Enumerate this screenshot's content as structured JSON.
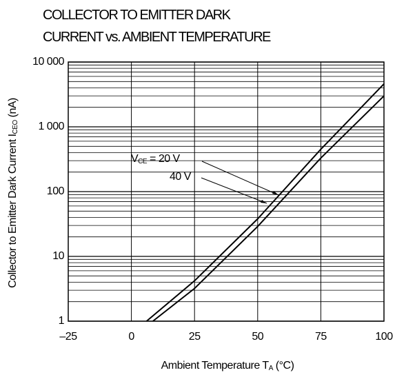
{
  "chart_data": {
    "type": "line",
    "title": [
      "COLLECTOR TO EMITTER DARK",
      "CURRENT vs. AMBIENT TEMPERATURE"
    ],
    "xlabel": {
      "text": "Ambient Temperature  T",
      "subscript": "A",
      "unit": " (°C)"
    },
    "ylabel": {
      "text": "Collector to Emitter Dark Current  I",
      "subscript": "CEO",
      "unit": " (nA)"
    },
    "annotation": {
      "symbol": "V",
      "subscript": "CE",
      "text": " = "
    },
    "series": [
      {
        "name": "20 V",
        "color": "#000000",
        "x": [
          8.5,
          25,
          50,
          75,
          100
        ],
        "values": [
          1,
          3.2,
          29,
          330,
          3000
        ]
      },
      {
        "name": "40 V",
        "color": "#000000",
        "x": [
          6,
          25,
          50,
          75,
          100
        ],
        "values": [
          1,
          4.2,
          38,
          450,
          4600
        ]
      }
    ],
    "xlim": [
      -25,
      100
    ],
    "xticks": [
      {
        "value": -25,
        "label": "–25"
      },
      0,
      25,
      50,
      75,
      100
    ],
    "ylim": [
      1,
      10000
    ],
    "yticks": [
      1,
      10,
      100,
      {
        "value": 1000,
        "label": "1 000"
      },
      {
        "value": 10000,
        "label": "10 000"
      }
    ],
    "ylog": true,
    "grid": true,
    "minor_grid": true
  }
}
